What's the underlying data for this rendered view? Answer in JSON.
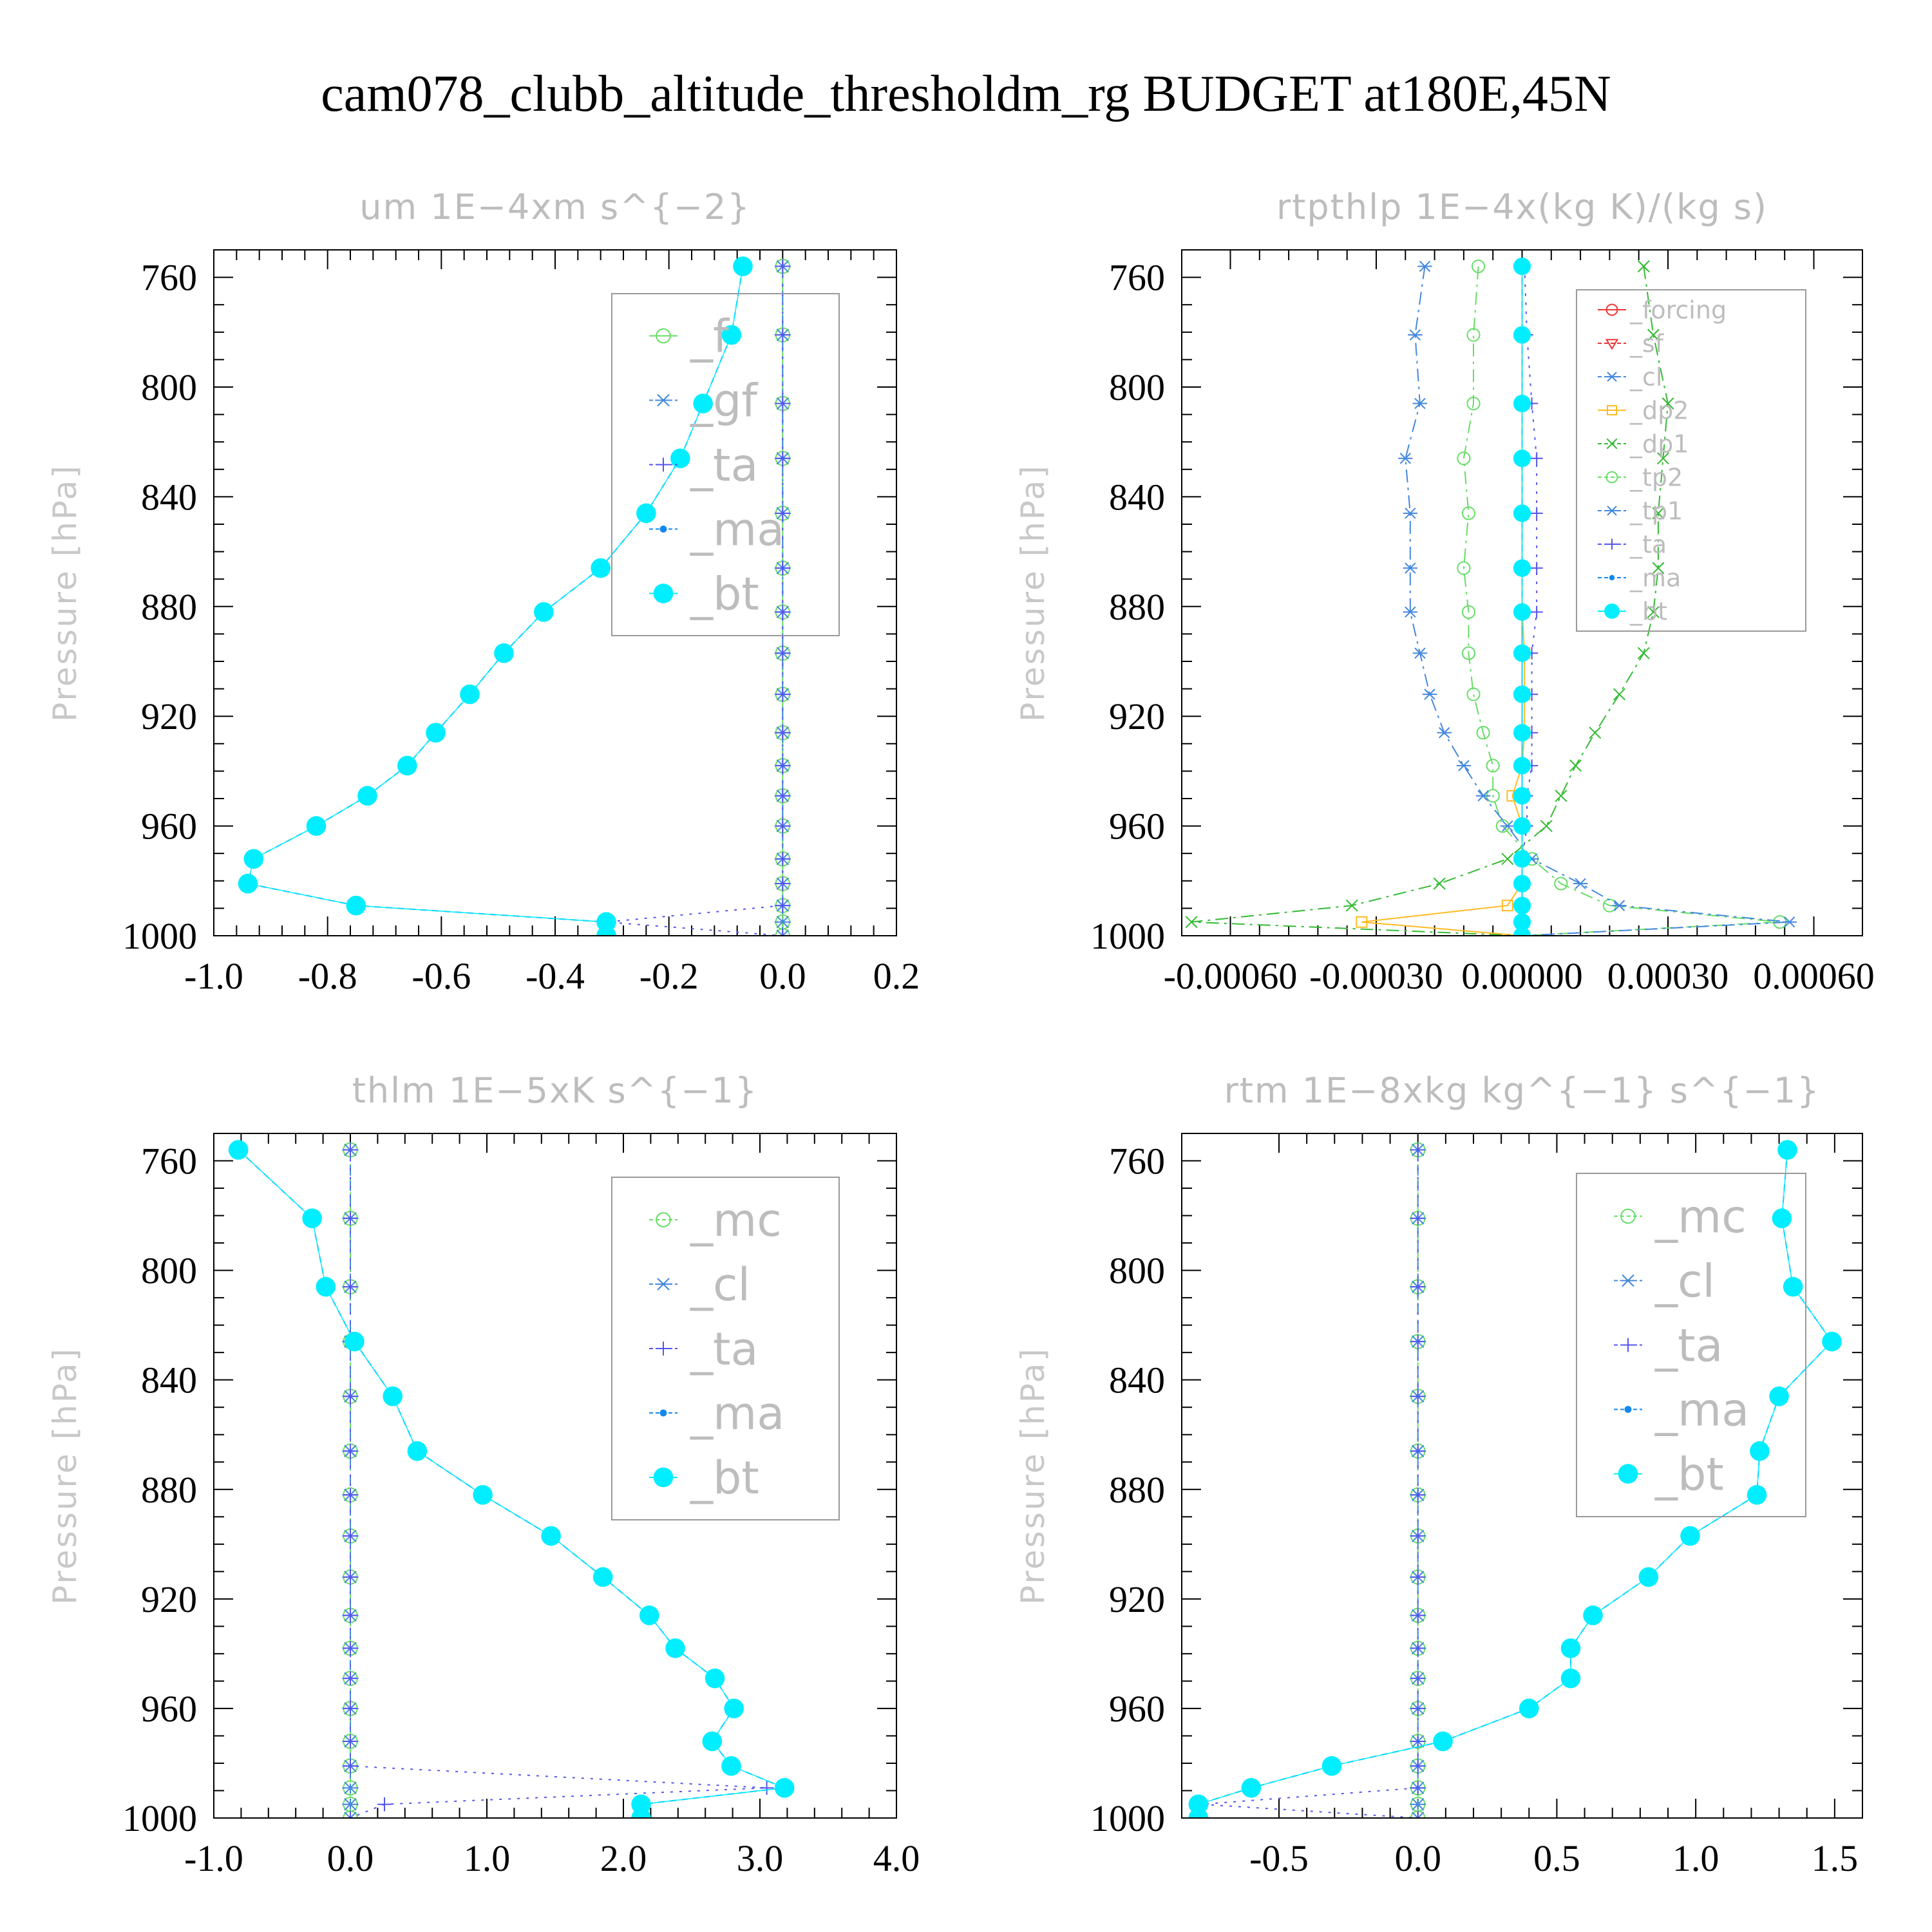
{
  "title": "cam078_clubb_altitude_thresholdm_rg  BUDGET at180E,45N",
  "colors": {
    "_f": "#66dd66",
    "_gf": "#4488dd",
    "_ta": "#5555ee",
    "_ma": "#1188ee",
    "_bt": "#00eeff",
    "_forcing": "#ee3333",
    "_sf": "#ee3333",
    "_cl": "#4488dd",
    "_dp2": "#ffbb22",
    "_dp1": "#33bb33",
    "_tp2": "#66dd66",
    "_tp1": "#4488dd",
    "_mc": "#66dd66"
  },
  "chart_data": [
    {
      "type": "line",
      "title": "um   1E−4xm s^{−2}",
      "ylabel": "Pressure [hPa]",
      "ylim": [
        750,
        1000
      ],
      "y_reversed": true,
      "yticks": [
        "760",
        "800",
        "840",
        "880",
        "920",
        "960",
        "1000"
      ],
      "xlim": [
        -1.0,
        0.2
      ],
      "xticks": [
        "-1.0",
        "-0.8",
        "-0.6",
        "-0.4",
        "-0.2",
        "0.0",
        "0.2"
      ],
      "legend": [
        "_f",
        "_gf",
        "_ta",
        "_ma",
        "_bt"
      ],
      "legend_position": "top-right",
      "y": [
        756,
        781,
        806,
        826,
        846,
        866,
        882,
        897,
        912,
        926,
        938,
        949,
        960,
        972,
        981,
        989,
        995,
        1000
      ],
      "series": [
        {
          "name": "_f",
          "values": [
            0,
            0,
            0,
            0,
            0,
            0,
            0,
            0,
            0,
            0,
            0,
            0,
            0,
            0,
            0,
            0,
            0,
            0
          ]
        },
        {
          "name": "_gf",
          "values": [
            0,
            0,
            0,
            0,
            0,
            0,
            0,
            0,
            0,
            0,
            0,
            0,
            0,
            0,
            0,
            0,
            0,
            0
          ]
        },
        {
          "name": "_ta",
          "values": [
            0,
            0,
            0,
            0,
            0,
            0,
            0,
            0,
            0,
            0,
            0,
            0,
            0,
            0,
            0,
            0,
            -0.31,
            0
          ]
        },
        {
          "name": "_ma",
          "values": [
            -0.07,
            -0.09,
            -0.14,
            -0.18,
            -0.24,
            -0.32,
            -0.42,
            -0.49,
            -0.55,
            -0.61,
            -0.66,
            -0.73,
            -0.82,
            -0.93,
            -0.94,
            -0.75,
            -0.31,
            -0.31
          ]
        },
        {
          "name": "_bt",
          "values": [
            -0.07,
            -0.09,
            -0.14,
            -0.18,
            -0.24,
            -0.32,
            -0.42,
            -0.49,
            -0.55,
            -0.61,
            -0.66,
            -0.73,
            -0.82,
            -0.93,
            -0.94,
            -0.75,
            -0.31,
            -0.31
          ]
        }
      ]
    },
    {
      "type": "line",
      "title": "rtpthlp   1E−4x(kg K)/(kg s)",
      "ylabel": "Pressure [hPa]",
      "ylim": [
        750,
        1000
      ],
      "y_reversed": true,
      "yticks": [
        "760",
        "800",
        "840",
        "880",
        "920",
        "960",
        "1000"
      ],
      "xlim": [
        -0.0007,
        0.0007
      ],
      "xticks": [
        "-0.00060",
        "-0.00030",
        "0.00000",
        "0.00030",
        "0.00060"
      ],
      "legend": [
        "_forcing",
        "_sf",
        "_cl",
        "_dp2",
        "_dp1",
        "_tp2",
        "_tp1",
        "_ta",
        "_ma",
        "_bt"
      ],
      "legend_position": "top-right",
      "y": [
        756,
        781,
        806,
        826,
        846,
        866,
        882,
        897,
        912,
        926,
        938,
        949,
        960,
        972,
        981,
        989,
        995,
        1000
      ],
      "series": [
        {
          "name": "_forcing",
          "values": [
            0,
            0,
            0,
            0,
            0,
            0,
            0,
            0,
            0,
            0,
            0,
            0,
            0,
            0,
            0,
            0,
            0,
            0
          ]
        },
        {
          "name": "_sf",
          "values": [
            0,
            0,
            0,
            0,
            0,
            0,
            0,
            0,
            0,
            0,
            0,
            0,
            0,
            0,
            0,
            0,
            0,
            0
          ]
        },
        {
          "name": "_cl",
          "values": [
            0,
            0,
            0,
            0,
            0,
            0,
            0,
            0,
            0,
            0,
            0,
            0,
            0,
            0,
            0,
            0,
            0,
            0
          ]
        },
        {
          "name": "_dp2",
          "values": [
            0,
            0,
            0,
            0,
            0,
            0,
            0,
            5e-06,
            5e-06,
            5e-06,
            0,
            -2e-05,
            0,
            0,
            0,
            -3e-05,
            -0.00033,
            0
          ]
        },
        {
          "name": "_dp1",
          "values": [
            0.00025,
            0.00027,
            0.0003,
            0.00029,
            0.00028,
            0.00028,
            0.00027,
            0.00025,
            0.0002,
            0.00015,
            0.00011,
            8e-05,
            5e-05,
            -3e-05,
            -0.00017,
            -0.00035,
            -0.00068,
            0
          ]
        },
        {
          "name": "_tp2",
          "values": [
            -9e-05,
            -0.0001,
            -0.0001,
            -0.00012,
            -0.00011,
            -0.00012,
            -0.00011,
            -0.00011,
            -0.0001,
            -8e-05,
            -6e-05,
            -6e-05,
            -4e-05,
            2e-05,
            8e-05,
            0.00018,
            0.00053,
            0
          ]
        },
        {
          "name": "_tp1",
          "values": [
            -0.0002,
            -0.00022,
            -0.00021,
            -0.00024,
            -0.00023,
            -0.00023,
            -0.00023,
            -0.00021,
            -0.00019,
            -0.00016,
            -0.00012,
            -8e-05,
            -3e-05,
            2e-05,
            0.00012,
            0.0002,
            0.00055,
            0
          ]
        },
        {
          "name": "_ta",
          "values": [
            5e-06,
            1e-05,
            2e-05,
            3e-05,
            3e-05,
            3e-05,
            3e-05,
            2e-05,
            2e-05,
            2e-05,
            2e-05,
            1e-05,
            1e-05,
            0,
            0,
            0,
            0,
            0
          ]
        },
        {
          "name": "_ma",
          "values": [
            0,
            0,
            0,
            0,
            0,
            0,
            0,
            0,
            0,
            0,
            0,
            0,
            0,
            0,
            0,
            0,
            0,
            0
          ]
        },
        {
          "name": "_bt",
          "values": [
            0,
            0,
            0,
            0,
            0,
            0,
            0,
            0,
            0,
            0,
            0,
            0,
            0,
            0,
            0,
            0,
            0,
            0
          ]
        }
      ]
    },
    {
      "type": "line",
      "title": "thlm   1E−5xK s^{−1}",
      "ylabel": "Pressure [hPa]",
      "ylim": [
        750,
        1000
      ],
      "y_reversed": true,
      "yticks": [
        "760",
        "800",
        "840",
        "880",
        "920",
        "960",
        "1000"
      ],
      "xlim": [
        -1.0,
        4.0
      ],
      "xticks": [
        "-1.0",
        "0.0",
        "1.0",
        "2.0",
        "3.0",
        "4.0"
      ],
      "legend": [
        "_mc",
        "_cl",
        "_ta",
        "_ma",
        "_bt"
      ],
      "legend_position": "top-right",
      "y": [
        756,
        781,
        806,
        826,
        846,
        866,
        882,
        897,
        912,
        926,
        938,
        949,
        960,
        972,
        981,
        989,
        995,
        1000
      ],
      "series": [
        {
          "name": "_mc",
          "values": [
            0,
            0,
            0,
            0,
            0,
            0,
            0,
            0,
            0,
            0,
            0,
            0,
            0,
            0,
            0,
            0,
            0,
            0
          ]
        },
        {
          "name": "_cl",
          "values": [
            0,
            0,
            0,
            0,
            0,
            0,
            0,
            0,
            0,
            0,
            0,
            0,
            0,
            0,
            0,
            0,
            0,
            0
          ]
        },
        {
          "name": "_ta",
          "values": [
            0,
            0,
            0,
            0,
            0,
            0,
            0,
            0,
            0,
            0,
            0,
            0,
            0,
            0,
            0,
            3.05,
            0.25,
            0
          ]
        },
        {
          "name": "_ma",
          "values": [
            -0.82,
            -0.28,
            -0.18,
            0.03,
            0.31,
            0.49,
            0.97,
            1.47,
            1.85,
            2.19,
            2.38,
            2.67,
            2.81,
            2.65,
            2.79,
            3.18,
            2.13,
            2.13
          ]
        },
        {
          "name": "_bt",
          "values": [
            -0.82,
            -0.28,
            -0.18,
            0.03,
            0.31,
            0.49,
            0.97,
            1.47,
            1.85,
            2.19,
            2.38,
            2.67,
            2.81,
            2.65,
            2.79,
            3.18,
            2.13,
            2.13
          ]
        }
      ]
    },
    {
      "type": "line",
      "title": "rtm   1E−8xkg kg^{−1} s^{−1}",
      "ylabel": "Pressure [hPa]",
      "ylim": [
        750,
        1000
      ],
      "y_reversed": true,
      "yticks": [
        "760",
        "800",
        "840",
        "880",
        "920",
        "960",
        "1000"
      ],
      "xlim": [
        -0.85,
        1.6
      ],
      "xticks": [
        "-0.5",
        "0.0",
        "0.5",
        "1.0",
        "1.5"
      ],
      "legend": [
        "_mc",
        "_cl",
        "_ta",
        "_ma",
        "_bt"
      ],
      "legend_position": "top-right",
      "y": [
        756,
        781,
        806,
        826,
        846,
        866,
        882,
        897,
        912,
        926,
        938,
        949,
        960,
        972,
        981,
        989,
        995,
        1000
      ],
      "series": [
        {
          "name": "_mc",
          "values": [
            0,
            0,
            0,
            0,
            0,
            0,
            0,
            0,
            0,
            0,
            0,
            0,
            0,
            0,
            0,
            0,
            0,
            0
          ]
        },
        {
          "name": "_cl",
          "values": [
            0,
            0,
            0,
            0,
            0,
            0,
            0,
            0,
            0,
            0,
            0,
            0,
            0,
            0,
            0,
            0,
            0,
            0
          ]
        },
        {
          "name": "_ta",
          "values": [
            0,
            0,
            0,
            0,
            0,
            0,
            0,
            0,
            0,
            0,
            0,
            0,
            0,
            0,
            0,
            0,
            -0.78,
            0
          ]
        },
        {
          "name": "_ma",
          "values": [
            1.33,
            1.31,
            1.35,
            1.49,
            1.3,
            1.23,
            1.22,
            0.98,
            0.83,
            0.63,
            0.55,
            0.55,
            0.4,
            0.09,
            -0.31,
            -0.6,
            -0.79,
            -0.79
          ]
        },
        {
          "name": "_bt",
          "values": [
            1.33,
            1.31,
            1.35,
            1.49,
            1.3,
            1.23,
            1.22,
            0.98,
            0.83,
            0.63,
            0.55,
            0.55,
            0.4,
            0.09,
            -0.31,
            -0.6,
            -0.79,
            -0.79
          ]
        }
      ]
    }
  ]
}
